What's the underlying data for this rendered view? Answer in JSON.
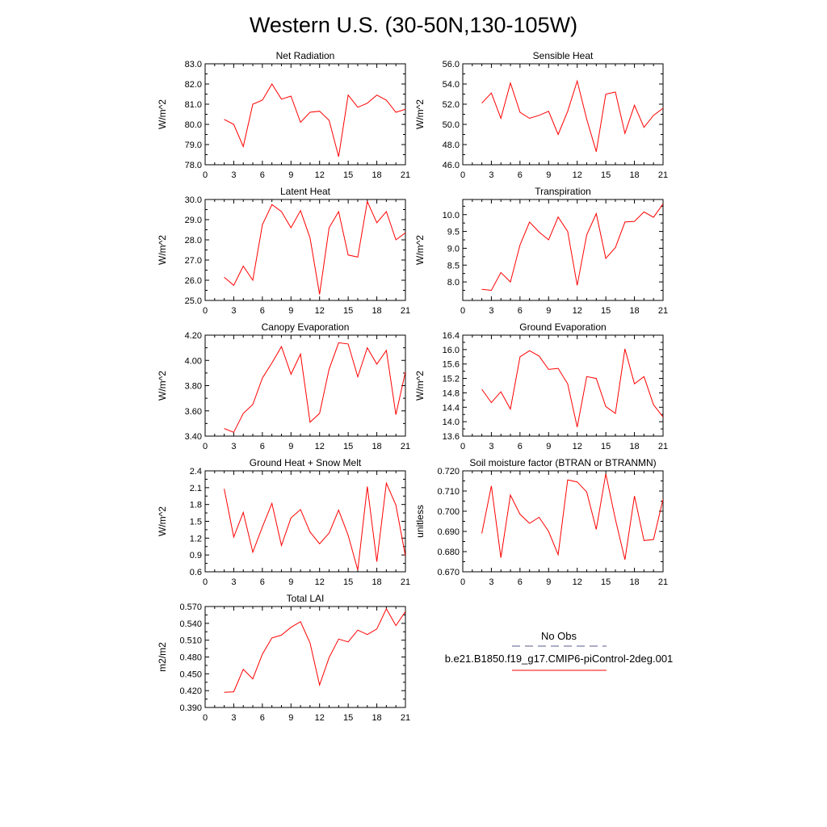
{
  "title": "Western U.S. (30-50N,130-105W)",
  "colors": {
    "model_line": "#ff0000",
    "obs_line": "#5a5a8c",
    "axis": "#000000"
  },
  "legend": {
    "obs_label": "No Obs",
    "model_label": "b.e21.B1850.f19_g17.CMIP6-piControl-2deg.001"
  },
  "chart_data": [
    {
      "type": "line",
      "title": "Net Radiation",
      "ylabel": "W/m^2",
      "xlim": [
        0,
        21
      ],
      "xticks": [
        "0",
        "3",
        "6",
        "9",
        "12",
        "15",
        "18",
        "21"
      ],
      "ylim": [
        78.0,
        83.0
      ],
      "yticks": [
        "78.0",
        "79.0",
        "80.0",
        "81.0",
        "82.0",
        "83.0"
      ],
      "x": [
        2,
        3,
        4,
        5,
        6,
        7,
        8,
        9,
        10,
        11,
        12,
        13,
        14,
        15,
        16,
        17,
        18,
        19,
        20,
        21
      ],
      "values": [
        80.25,
        80.0,
        78.9,
        81.0,
        81.2,
        82.0,
        81.25,
        81.4,
        80.1,
        80.6,
        80.65,
        80.2,
        78.4,
        81.45,
        80.85,
        81.05,
        81.45,
        81.2,
        80.6,
        80.75
      ]
    },
    {
      "type": "line",
      "title": "Sensible Heat",
      "ylabel": "W/m^2",
      "xlim": [
        0,
        21
      ],
      "xticks": [
        "0",
        "3",
        "6",
        "9",
        "12",
        "15",
        "18",
        "21"
      ],
      "ylim": [
        46.0,
        56.0
      ],
      "yticks": [
        "46.0",
        "48.0",
        "50.0",
        "52.0",
        "54.0",
        "56.0"
      ],
      "x": [
        2,
        3,
        4,
        5,
        6,
        7,
        8,
        9,
        10,
        11,
        12,
        13,
        14,
        15,
        16,
        17,
        18,
        19,
        20,
        21
      ],
      "values": [
        52.1,
        53.1,
        50.6,
        54.1,
        51.2,
        50.6,
        50.9,
        51.3,
        49.0,
        51.3,
        54.3,
        50.5,
        47.3,
        53.0,
        53.2,
        49.1,
        51.9,
        49.7,
        50.9,
        51.6
      ]
    },
    {
      "type": "line",
      "title": "Latent Heat",
      "ylabel": "W/m^2",
      "xlim": [
        0,
        21
      ],
      "xticks": [
        "0",
        "3",
        "6",
        "9",
        "12",
        "15",
        "18",
        "21"
      ],
      "ylim": [
        25.0,
        30.0
      ],
      "yticks": [
        "25.0",
        "26.0",
        "27.0",
        "28.0",
        "29.0",
        "30.0"
      ],
      "x": [
        2,
        3,
        4,
        5,
        6,
        7,
        8,
        9,
        10,
        11,
        12,
        13,
        14,
        15,
        16,
        17,
        18,
        19,
        20,
        21
      ],
      "values": [
        26.15,
        25.75,
        26.7,
        26.0,
        28.75,
        29.75,
        29.4,
        28.6,
        29.45,
        28.1,
        25.3,
        28.6,
        29.4,
        27.25,
        27.15,
        29.9,
        28.85,
        29.4,
        28.0,
        28.35
      ]
    },
    {
      "type": "line",
      "title": "Transpiration",
      "ylabel": "W/m^2",
      "xlim": [
        0,
        21
      ],
      "xticks": [
        "0",
        "3",
        "6",
        "9",
        "12",
        "15",
        "18",
        "21"
      ],
      "ylim": [
        7.45,
        10.45
      ],
      "yticks": [
        "8.0",
        "8.5",
        "9.0",
        "9.5",
        "10.0"
      ],
      "x": [
        2,
        3,
        4,
        5,
        6,
        7,
        8,
        9,
        10,
        11,
        12,
        13,
        14,
        15,
        16,
        17,
        18,
        19,
        20,
        21
      ],
      "values": [
        7.78,
        7.75,
        8.28,
        8.0,
        9.1,
        9.78,
        9.48,
        9.25,
        9.93,
        9.5,
        7.9,
        9.4,
        10.03,
        8.7,
        9.02,
        9.78,
        9.8,
        10.08,
        9.92,
        10.32
      ]
    },
    {
      "type": "line",
      "title": "Canopy Evaporation",
      "ylabel": "W/m^2",
      "xlim": [
        0,
        21
      ],
      "xticks": [
        "0",
        "3",
        "6",
        "9",
        "12",
        "15",
        "18",
        "21"
      ],
      "ylim": [
        3.4,
        4.2
      ],
      "yticks": [
        "3.40",
        "3.60",
        "3.80",
        "4.00",
        "4.20"
      ],
      "x": [
        2,
        3,
        4,
        5,
        6,
        7,
        8,
        9,
        10,
        11,
        12,
        13,
        14,
        15,
        16,
        17,
        18,
        19,
        20,
        21
      ],
      "values": [
        3.46,
        3.43,
        3.58,
        3.65,
        3.86,
        3.98,
        4.11,
        3.89,
        4.05,
        3.51,
        3.58,
        3.93,
        4.14,
        4.13,
        3.87,
        4.1,
        3.97,
        4.08,
        3.57,
        3.91
      ]
    },
    {
      "type": "line",
      "title": "Ground Evaporation",
      "ylabel": "W/m^2",
      "xlim": [
        0,
        21
      ],
      "xticks": [
        "0",
        "3",
        "6",
        "9",
        "12",
        "15",
        "18",
        "21"
      ],
      "ylim": [
        13.6,
        16.4
      ],
      "yticks": [
        "13.6",
        "14.0",
        "14.4",
        "14.8",
        "15.2",
        "15.6",
        "16.0",
        "16.4"
      ],
      "x": [
        2,
        3,
        4,
        5,
        6,
        7,
        8,
        9,
        10,
        11,
        12,
        13,
        14,
        15,
        16,
        17,
        18,
        19,
        20,
        21
      ],
      "values": [
        14.9,
        14.53,
        14.83,
        14.35,
        15.8,
        15.97,
        15.82,
        15.45,
        15.48,
        15.05,
        13.85,
        15.25,
        15.2,
        14.42,
        14.23,
        16.02,
        15.05,
        15.25,
        14.47,
        14.13
      ]
    },
    {
      "type": "line",
      "title": "Ground Heat + Snow Melt",
      "ylabel": "W/m^2",
      "xlim": [
        0,
        21
      ],
      "xticks": [
        "0",
        "3",
        "6",
        "9",
        "12",
        "15",
        "18",
        "21"
      ],
      "ylim": [
        0.6,
        2.4
      ],
      "yticks": [
        "0.6",
        "0.9",
        "1.2",
        "1.5",
        "1.8",
        "2.1",
        "2.4"
      ],
      "x": [
        2,
        3,
        4,
        5,
        6,
        7,
        8,
        9,
        10,
        11,
        12,
        13,
        14,
        15,
        16,
        17,
        18,
        19,
        20,
        21
      ],
      "values": [
        2.08,
        1.22,
        1.66,
        0.95,
        1.4,
        1.82,
        1.07,
        1.56,
        1.71,
        1.31,
        1.1,
        1.29,
        1.7,
        1.25,
        0.63,
        2.12,
        0.78,
        2.18,
        1.79,
        0.88
      ]
    },
    {
      "type": "line",
      "title": "Soil moisture factor (BTRAN or BTRANMN)",
      "ylabel": "unitless",
      "xlim": [
        0,
        21
      ],
      "xticks": [
        "0",
        "3",
        "6",
        "9",
        "12",
        "15",
        "18",
        "21"
      ],
      "ylim": [
        0.67,
        0.72
      ],
      "yticks": [
        "0.670",
        "0.680",
        "0.690",
        "0.700",
        "0.710",
        "0.720"
      ],
      "x": [
        2,
        3,
        4,
        5,
        6,
        7,
        8,
        9,
        10,
        11,
        12,
        13,
        14,
        15,
        16,
        17,
        18,
        19,
        20,
        21
      ],
      "values": [
        0.689,
        0.7125,
        0.677,
        0.708,
        0.6985,
        0.694,
        0.697,
        0.69,
        0.6785,
        0.7155,
        0.7145,
        0.7095,
        0.691,
        0.7185,
        0.696,
        0.676,
        0.7075,
        0.6855,
        0.686,
        0.706
      ]
    },
    {
      "type": "line",
      "title": "Total LAI",
      "ylabel": "m2/m2",
      "xlim": [
        0,
        21
      ],
      "xticks": [
        "0",
        "3",
        "6",
        "9",
        "12",
        "15",
        "18",
        "21"
      ],
      "ylim": [
        0.39,
        0.57
      ],
      "yticks": [
        "0.390",
        "0.420",
        "0.450",
        "0.480",
        "0.510",
        "0.540",
        "0.570"
      ],
      "x": [
        2,
        3,
        4,
        5,
        6,
        7,
        8,
        9,
        10,
        11,
        12,
        13,
        14,
        15,
        16,
        17,
        18,
        19,
        20,
        21
      ],
      "values": [
        0.417,
        0.418,
        0.458,
        0.441,
        0.485,
        0.514,
        0.519,
        0.533,
        0.543,
        0.505,
        0.43,
        0.479,
        0.512,
        0.507,
        0.528,
        0.52,
        0.53,
        0.566,
        0.536,
        0.561
      ]
    }
  ]
}
